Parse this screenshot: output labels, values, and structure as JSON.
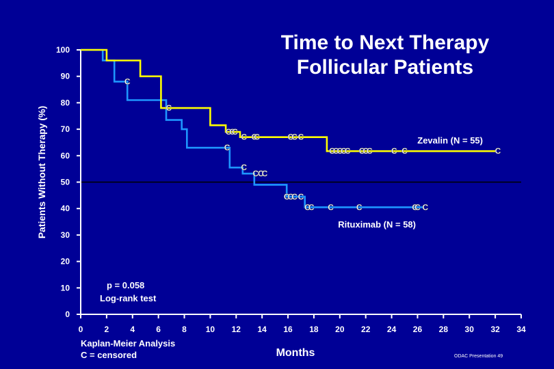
{
  "chart_data": {
    "type": "line",
    "title": [
      "Time to Next Therapy",
      "Follicular Patients"
    ],
    "ylabel": "Patients Without Therapy (%)",
    "xlabel": "Months",
    "xlim": [
      0,
      34
    ],
    "ylim": [
      0,
      100
    ],
    "x_ticks": [
      0,
      2,
      4,
      6,
      8,
      10,
      12,
      14,
      16,
      18,
      20,
      22,
      24,
      26,
      28,
      30,
      32,
      34
    ],
    "y_ticks": [
      0,
      10,
      20,
      30,
      40,
      50,
      60,
      70,
      80,
      90,
      100
    ],
    "reference_line_y": 50,
    "censor_symbol": "C",
    "series": [
      {
        "name": "Zevalin (N = 55)",
        "color": "#ffff00",
        "x": [
          0,
          2,
          2,
          4.6,
          4.6,
          6.2,
          6.2,
          10,
          10,
          11.2,
          11.2,
          12.3,
          12.3,
          19,
          19,
          32
        ],
        "y": [
          100,
          100,
          96,
          96,
          90,
          90,
          78,
          78,
          71.5,
          71.5,
          69,
          69,
          67,
          67,
          61.7,
          61.7
        ],
        "censored": [
          {
            "x": 11.4,
            "y": 69
          },
          {
            "x": 11.7,
            "y": 69
          },
          {
            "x": 11.9,
            "y": 69
          },
          {
            "x": 12.6,
            "y": 67
          },
          {
            "x": 13.4,
            "y": 67
          },
          {
            "x": 13.6,
            "y": 67
          },
          {
            "x": 16.2,
            "y": 67
          },
          {
            "x": 16.5,
            "y": 67
          },
          {
            "x": 17,
            "y": 67
          },
          {
            "x": 19.4,
            "y": 61.7
          },
          {
            "x": 19.7,
            "y": 61.7
          },
          {
            "x": 20,
            "y": 61.7
          },
          {
            "x": 20.3,
            "y": 61.7
          },
          {
            "x": 20.6,
            "y": 61.7
          },
          {
            "x": 21.7,
            "y": 61.7
          },
          {
            "x": 22,
            "y": 61.7
          },
          {
            "x": 22.3,
            "y": 61.7
          },
          {
            "x": 24.2,
            "y": 61.7
          },
          {
            "x": 25,
            "y": 61.7
          },
          {
            "x": 32.2,
            "y": 61.7
          }
        ]
      },
      {
        "name": "Rituximab (N = 58)",
        "color": "#1e96ff",
        "x": [
          0,
          1.7,
          1.7,
          2.6,
          2.6,
          3.6,
          3.6,
          6.6,
          6.6,
          7.8,
          7.8,
          8.2,
          8.2,
          11.5,
          11.5,
          12.5,
          12.5,
          13.4,
          13.4,
          15.9,
          15.9,
          17.3,
          17.3,
          26.5
        ],
        "y": [
          100,
          100,
          96,
          96,
          88,
          88,
          81,
          81,
          73.5,
          73.5,
          70,
          70,
          63,
          63,
          55.5,
          55.5,
          53.2,
          53.2,
          49,
          49,
          44.5,
          44.5,
          40.5,
          40.5
        ],
        "censored": [
          {
            "x": 3.6,
            "y": 88
          },
          {
            "x": 6.8,
            "y": 78
          },
          {
            "x": 11.3,
            "y": 63
          },
          {
            "x": 12.6,
            "y": 55.5
          },
          {
            "x": 13.5,
            "y": 53.2
          },
          {
            "x": 13.9,
            "y": 53.2
          },
          {
            "x": 14.2,
            "y": 53.2
          },
          {
            "x": 15.9,
            "y": 44.5
          },
          {
            "x": 16.2,
            "y": 44.5
          },
          {
            "x": 16.5,
            "y": 44.5
          },
          {
            "x": 17,
            "y": 44.5
          },
          {
            "x": 17.5,
            "y": 40.5
          },
          {
            "x": 17.8,
            "y": 40.5
          },
          {
            "x": 19.3,
            "y": 40.5
          },
          {
            "x": 21.5,
            "y": 40.5
          },
          {
            "x": 25.8,
            "y": 40.5
          },
          {
            "x": 26,
            "y": 40.5
          },
          {
            "x": 26.6,
            "y": 40.5
          }
        ]
      }
    ],
    "annotations": {
      "p_value": "p = 0.058",
      "test": "Log-rank test",
      "method": "Kaplan-Meier Analysis",
      "censor_note": "C = censored",
      "footer": "ODAC Presentation 49"
    }
  }
}
